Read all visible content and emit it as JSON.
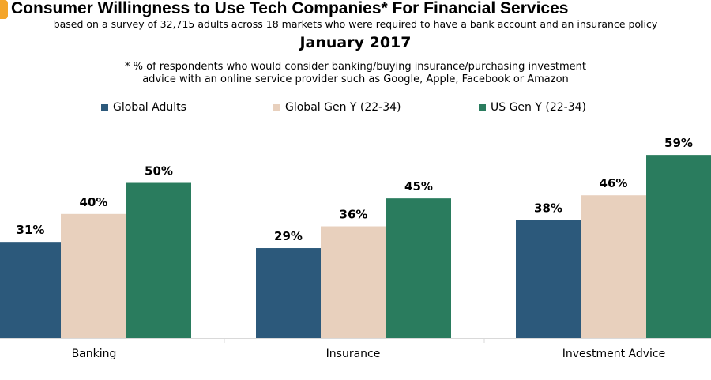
{
  "chart_data": {
    "type": "bar",
    "title": "Consumer Willingness to Use Tech Companies* For Financial Services",
    "subtitle": "based on a survey of 32,715 adults across 18 markets who were required to have a bank account and an insurance policy",
    "date": "January 2017",
    "note_line1": "* % of respondents who would consider banking/buying insurance/purchasing investment",
    "note_line2": "advice with an online service provider such as Google, Apple, Facebook or Amazon",
    "categories": [
      "Banking",
      "Insurance",
      "Investment Advice"
    ],
    "series": [
      {
        "name": "Global Adults",
        "color": "#2c597b",
        "values": [
          31,
          29,
          38
        ]
      },
      {
        "name": "Global Gen Y (22-34)",
        "color": "#e8d0bd",
        "values": [
          40,
          36,
          46
        ]
      },
      {
        "name": "US Gen Y (22-34)",
        "color": "#2a7c5e",
        "values": [
          50,
          45,
          59
        ]
      }
    ],
    "value_format": "%",
    "legend_position": "top",
    "grid": false,
    "ylim": [
      0,
      60
    ]
  }
}
